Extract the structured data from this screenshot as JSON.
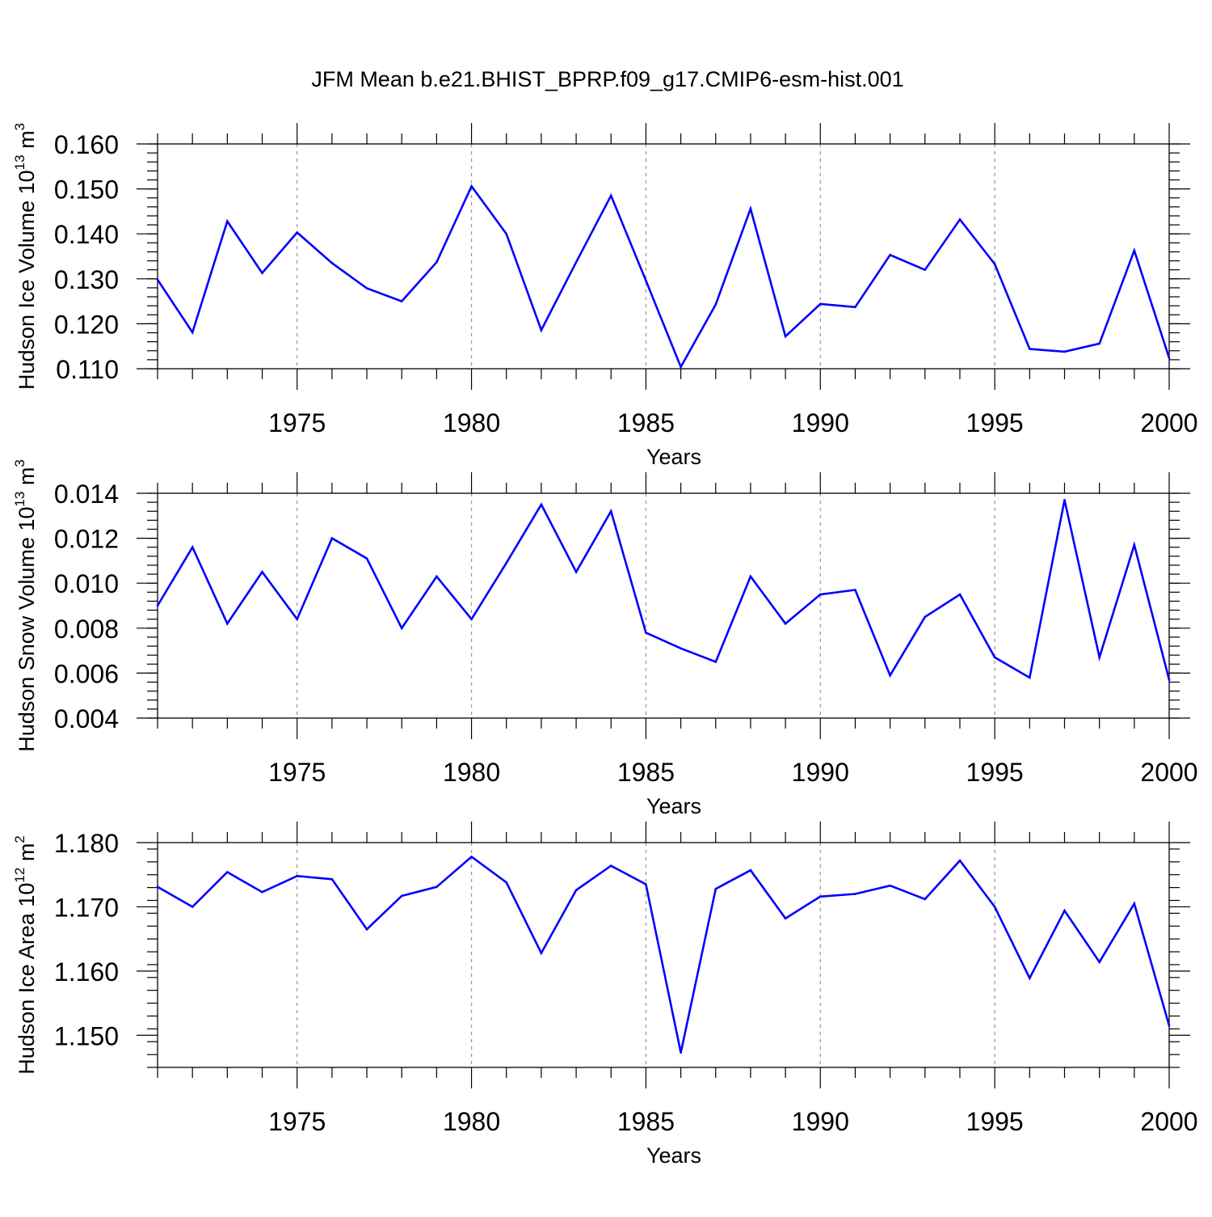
{
  "title": "JFM Mean b.e21.BHIST_BPRP.f09_g17.CMIP6-esm-hist.001",
  "chart_data": [
    {
      "type": "line",
      "ylabel_main": "Hudson Ice Volume 10",
      "ylabel_exp": "13",
      "ylabel_unit": " m",
      "ylabel_unit_exp": "3",
      "xlabel": "Years",
      "xlim": [
        1971,
        2000
      ],
      "ylim": [
        0.11,
        0.16
      ],
      "yticks": [
        0.11,
        0.12,
        0.13,
        0.14,
        0.15,
        0.16
      ],
      "ytick_labels": [
        "0.110",
        "0.120",
        "0.130",
        "0.140",
        "0.150",
        "0.160"
      ],
      "yminor_step": 0.002,
      "xticks": [
        1975,
        1980,
        1985,
        1990,
        1995,
        2000
      ],
      "xtick_labels": [
        "1975",
        "1980",
        "1985",
        "1990",
        "1995",
        "2000"
      ],
      "grid": "dashed vertical at major x ticks",
      "line_color": "#0000ff",
      "x": [
        1971,
        1972,
        1973,
        1974,
        1975,
        1976,
        1977,
        1978,
        1979,
        1980,
        1981,
        1982,
        1983,
        1984,
        1985,
        1986,
        1987,
        1988,
        1989,
        1990,
        1991,
        1992,
        1993,
        1994,
        1995,
        1996,
        1997,
        1998,
        1999,
        2000
      ],
      "values": [
        0.1298,
        0.1181,
        0.1428,
        0.1313,
        0.1403,
        0.1335,
        0.1279,
        0.125,
        0.1337,
        0.1506,
        0.14,
        0.1186,
        0.1337,
        0.1485,
        0.1296,
        0.1104,
        0.1243,
        0.1456,
        0.1172,
        0.1244,
        0.1237,
        0.1353,
        0.132,
        0.1432,
        0.1333,
        0.1144,
        0.1138,
        0.1156,
        0.1363,
        0.1124
      ]
    },
    {
      "type": "line",
      "ylabel_main": "Hudson Snow Volume 10",
      "ylabel_exp": "13",
      "ylabel_unit": " m",
      "ylabel_unit_exp": "3",
      "xlabel": "Years",
      "xlim": [
        1971,
        2000
      ],
      "ylim": [
        0.004,
        0.014
      ],
      "yticks": [
        0.004,
        0.006,
        0.008,
        0.01,
        0.012,
        0.014
      ],
      "ytick_labels": [
        "0.004",
        "0.006",
        "0.008",
        "0.010",
        "0.012",
        "0.014"
      ],
      "yminor_step": 0.0004,
      "xticks": [
        1975,
        1980,
        1985,
        1990,
        1995,
        2000
      ],
      "xtick_labels": [
        "1975",
        "1980",
        "1985",
        "1990",
        "1995",
        "2000"
      ],
      "grid": "dashed vertical at major x ticks",
      "line_color": "#0000ff",
      "x": [
        1971,
        1972,
        1973,
        1974,
        1975,
        1976,
        1977,
        1978,
        1979,
        1980,
        1981,
        1982,
        1983,
        1984,
        1985,
        1986,
        1987,
        1988,
        1989,
        1990,
        1991,
        1992,
        1993,
        1994,
        1995,
        1996,
        1997,
        1998,
        1999,
        2000
      ],
      "values": [
        0.009,
        0.0116,
        0.0082,
        0.0105,
        0.0084,
        0.012,
        0.0111,
        0.008,
        0.0103,
        0.0084,
        0.0109,
        0.0135,
        0.0105,
        0.0132,
        0.0078,
        0.0071,
        0.0065,
        0.0103,
        0.0082,
        0.0095,
        0.0097,
        0.0059,
        0.0085,
        0.0095,
        0.0067,
        0.0058,
        0.0137,
        0.0067,
        0.0117,
        0.0057
      ]
    },
    {
      "type": "line",
      "ylabel_main": "Hudson Ice Area 10",
      "ylabel_exp": "12",
      "ylabel_unit": " m",
      "ylabel_unit_exp": "2",
      "xlabel": "Years",
      "xlim": [
        1971,
        2000
      ],
      "ylim": [
        1.145,
        1.18
      ],
      "yticks": [
        1.15,
        1.16,
        1.17,
        1.18
      ],
      "ytick_labels": [
        "1.150",
        "1.160",
        "1.170",
        "1.180"
      ],
      "yminor_step": 0.002,
      "xticks": [
        1975,
        1980,
        1985,
        1990,
        1995,
        2000
      ],
      "xtick_labels": [
        "1975",
        "1980",
        "1985",
        "1990",
        "1995",
        "2000"
      ],
      "grid": "dashed vertical at major x ticks",
      "line_color": "#0000ff",
      "x": [
        1971,
        1972,
        1973,
        1974,
        1975,
        1976,
        1977,
        1978,
        1979,
        1980,
        1981,
        1982,
        1983,
        1984,
        1985,
        1986,
        1987,
        1988,
        1989,
        1990,
        1991,
        1992,
        1993,
        1994,
        1995,
        1996,
        1997,
        1998,
        1999,
        2000
      ],
      "values": [
        1.1731,
        1.17,
        1.1754,
        1.1723,
        1.1748,
        1.1743,
        1.1665,
        1.1717,
        1.1731,
        1.1778,
        1.1738,
        1.1628,
        1.1726,
        1.1764,
        1.1735,
        1.1473,
        1.1728,
        1.1757,
        1.1682,
        1.1716,
        1.172,
        1.1733,
        1.1712,
        1.1772,
        1.17,
        1.1589,
        1.1694,
        1.1614,
        1.1705,
        1.1515
      ]
    }
  ]
}
